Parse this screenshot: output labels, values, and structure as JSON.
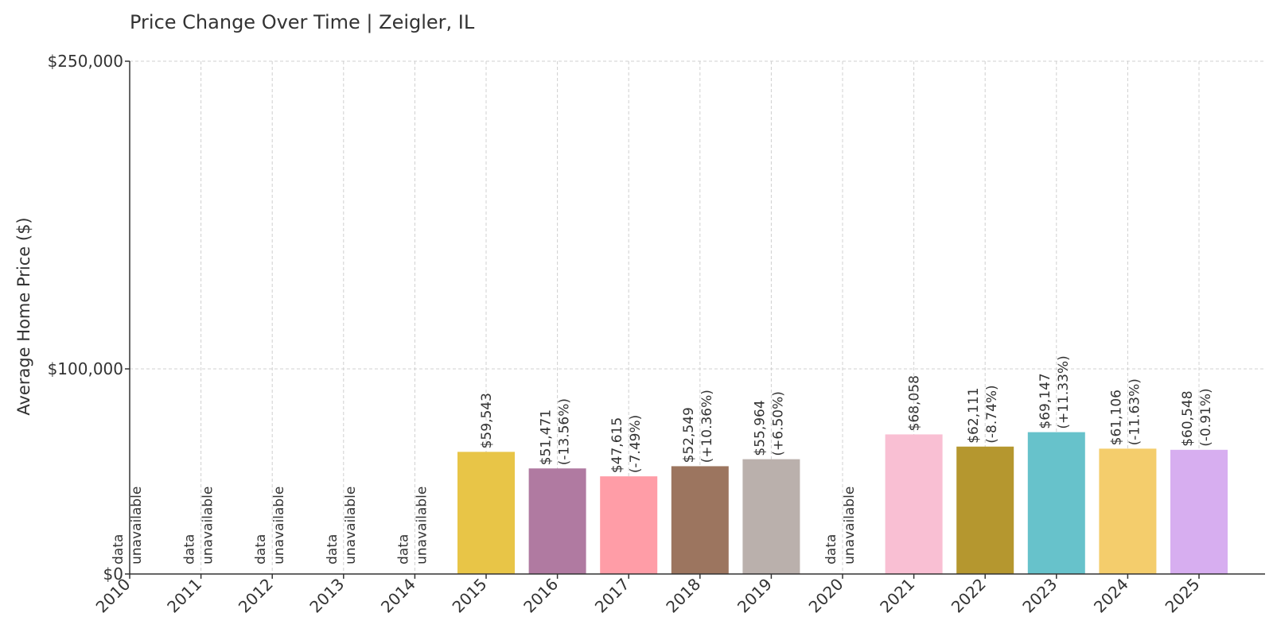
{
  "chart_data": {
    "type": "bar",
    "title": "Price Change Over Time | Zeigler, IL",
    "xlabel": "",
    "ylabel": "Average Home Price ($)",
    "ylim": [
      0,
      250000
    ],
    "yticks": [
      {
        "value": 0,
        "label": "$0"
      },
      {
        "value": 100000,
        "label": "$100,000"
      },
      {
        "value": 250000,
        "label": "$250,000"
      }
    ],
    "grid": true,
    "categories": [
      "2010",
      "2011",
      "2012",
      "2013",
      "2014",
      "2015",
      "2016",
      "2017",
      "2018",
      "2019",
      "2020",
      "2021",
      "2022",
      "2023",
      "2024",
      "2025"
    ],
    "values": [
      null,
      null,
      null,
      null,
      null,
      59543,
      51471,
      47615,
      52549,
      55964,
      null,
      68058,
      62111,
      69147,
      61106,
      60548
    ],
    "value_labels": [
      "",
      "",
      "",
      "",
      "",
      "$59,543",
      "$51,471",
      "$47,615",
      "$52,549",
      "$55,964",
      "",
      "$68,058",
      "$62,111",
      "$69,147",
      "$61,106",
      "$60,548"
    ],
    "change_labels": [
      "",
      "",
      "",
      "",
      "",
      "",
      "(-13.56%)",
      "(-7.49%)",
      "(+10.36%)",
      "(+6.50%)",
      "",
      "",
      "(-8.74%)",
      "(+11.33%)",
      "(-11.63%)",
      "(-0.91%)"
    ],
    "missing_label": [
      "data",
      "unavailable"
    ],
    "colors": [
      "",
      "",
      "",
      "",
      "",
      "#E8C547",
      "#B07AA1",
      "#FF9DA7",
      "#9C755F",
      "#BAB0AC",
      "",
      "#F9BFD3",
      "#B5972F",
      "#67C2CB",
      "#F4CD6C",
      "#D7AEF0"
    ]
  }
}
